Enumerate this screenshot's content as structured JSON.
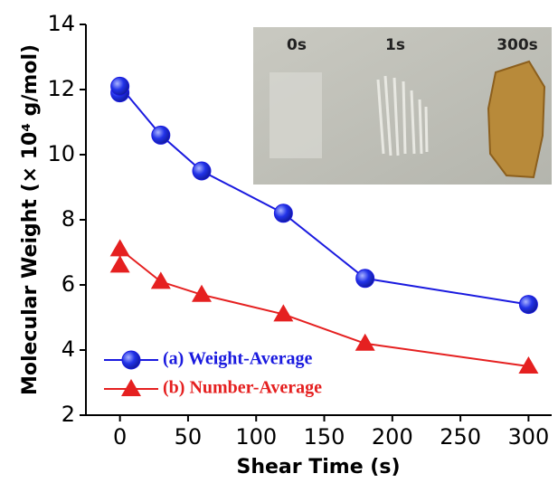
{
  "chart_data": {
    "type": "line",
    "x_label": "Shear Time (s)",
    "y_label": "Molecular Weight (× 10⁴ g/mol)",
    "x": [
      0,
      0,
      30,
      60,
      120,
      180,
      300
    ],
    "series": [
      {
        "name": "(a) Weight-Average",
        "color": "#1a1adf",
        "marker": "circle",
        "values": [
          11.9,
          12.1,
          10.6,
          9.5,
          8.2,
          6.2,
          5.4
        ]
      },
      {
        "name": "(b) Number-Average",
        "color": "#e52020",
        "marker": "triangle",
        "values": [
          6.6,
          7.1,
          6.1,
          5.7,
          5.1,
          4.2,
          3.5
        ]
      }
    ],
    "xlim": [
      -25,
      317
    ],
    "xticks": [
      0,
      50,
      100,
      150,
      200,
      250,
      300
    ],
    "ylim": [
      2,
      14
    ],
    "yticks": [
      2,
      4,
      6,
      8,
      10,
      12,
      14
    ],
    "legend": "lower-left",
    "inset_labels": [
      "0s",
      "1s",
      "300s"
    ]
  }
}
